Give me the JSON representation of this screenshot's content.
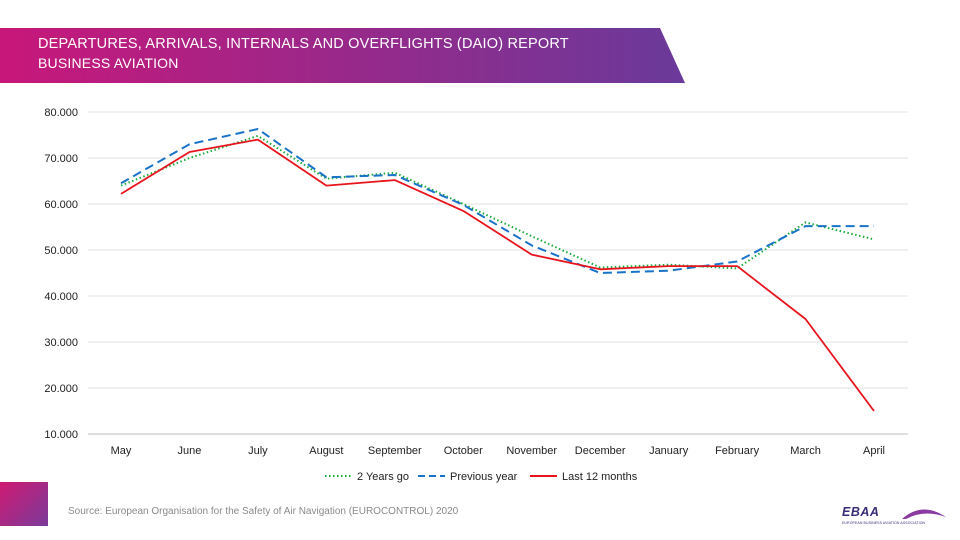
{
  "header": {
    "title": "DEPARTURES, ARRIVALS, INTERNALS AND OVERFLIGHTS (DAIO) REPORT",
    "subtitle": "BUSINESS AVIATION",
    "gradient_start": "#c8177a",
    "gradient_end": "#6a3a9a"
  },
  "footer": {
    "source": "Source:  European Organisation for the Safety of Air Navigation (EUROCONTROL) 2020",
    "logo_text": "EBAA",
    "logo_subtext": "EUROPEAN BUSINESS AVIATION ASSOCIATION"
  },
  "chart_data": {
    "type": "line",
    "title": "",
    "xlabel": "",
    "ylabel": "",
    "categories": [
      "May",
      "June",
      "July",
      "August",
      "September",
      "October",
      "November",
      "December",
      "January",
      "February",
      "March",
      "April"
    ],
    "ylim": [
      10000,
      80000
    ],
    "yticks": [
      "10.000",
      "20.000",
      "30.000",
      "40.000",
      "50.000",
      "60.000",
      "70.000",
      "80.000"
    ],
    "grid": true,
    "legend_position": "bottom",
    "series": [
      {
        "name": "2 Years go",
        "color": "#1aaa3a",
        "style": "dotted",
        "values": [
          64000,
          70000,
          74800,
          65500,
          66800,
          60000,
          53000,
          46200,
          46800,
          46000,
          56000,
          52300
        ]
      },
      {
        "name": "Previous year",
        "color": "#1a73c8",
        "style": "dashed",
        "values": [
          64500,
          73000,
          76300,
          65800,
          66300,
          59800,
          51000,
          45000,
          45500,
          47500,
          55200,
          55200
        ]
      },
      {
        "name": "Last 12 months",
        "color": "#e8141c",
        "style": "solid",
        "values": [
          62200,
          71300,
          74000,
          64000,
          65200,
          58500,
          49000,
          45800,
          46500,
          46500,
          35000,
          15000
        ]
      }
    ]
  }
}
